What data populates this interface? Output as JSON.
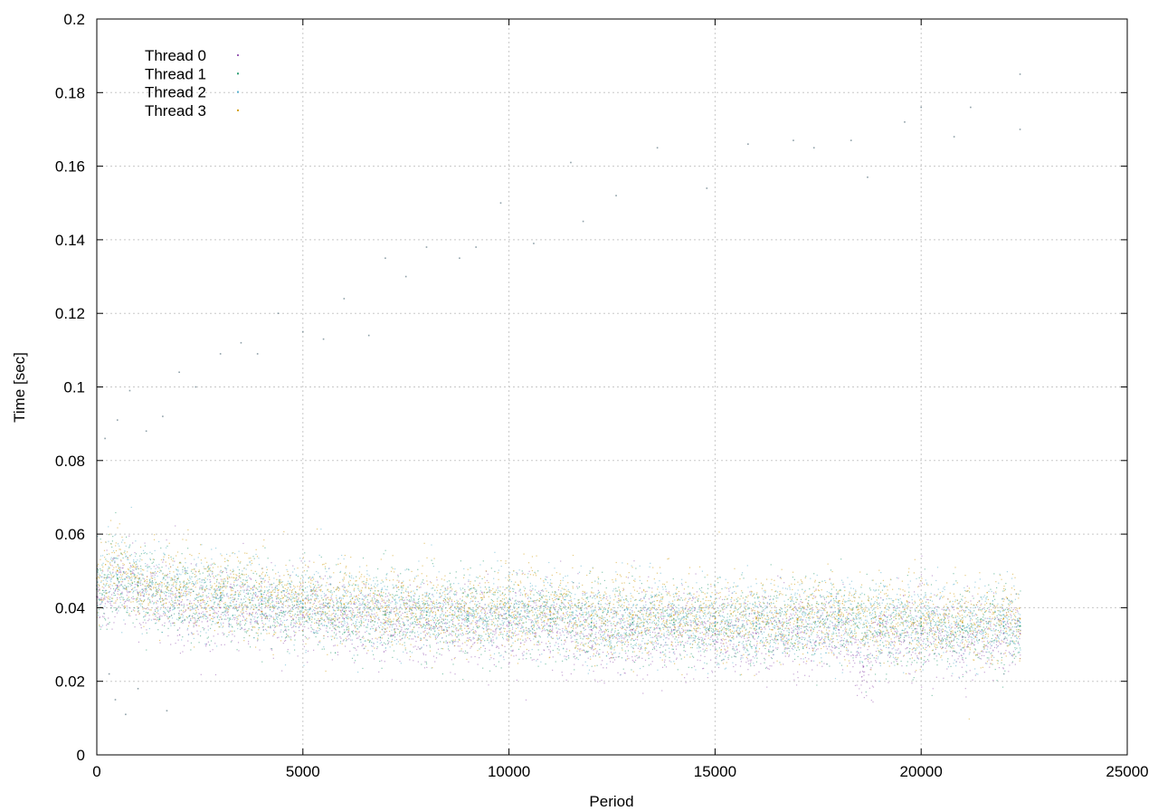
{
  "chart_data": {
    "type": "scatter",
    "title": "",
    "xlabel": "Period",
    "ylabel": "Time [sec]",
    "xlim": [
      0,
      25000
    ],
    "ylim": [
      0,
      0.2
    ],
    "x_ticks": [
      "0",
      "5000",
      "10000",
      "15000",
      "20000",
      "25000"
    ],
    "y_ticks": [
      "0",
      "0.02",
      "0.04",
      "0.06",
      "0.08",
      "0.1",
      "0.12",
      "0.14",
      "0.16",
      "0.18",
      "0.2"
    ],
    "grid": true,
    "legend_position": "top-left",
    "series": [
      {
        "name": "Thread 0",
        "color": "#9a5fb5",
        "points": [
          [
            0,
            0.043
          ],
          [
            500,
            0.046
          ],
          [
            1000,
            0.044
          ],
          [
            2000,
            0.041
          ],
          [
            3000,
            0.04
          ],
          [
            4000,
            0.039
          ],
          [
            5000,
            0.038
          ],
          [
            6000,
            0.037
          ],
          [
            7000,
            0.036
          ],
          [
            8000,
            0.036
          ],
          [
            9000,
            0.035
          ],
          [
            10000,
            0.036
          ],
          [
            11000,
            0.035
          ],
          [
            12000,
            0.034
          ],
          [
            13000,
            0.034
          ],
          [
            14000,
            0.034
          ],
          [
            15000,
            0.033
          ],
          [
            16000,
            0.033
          ],
          [
            17000,
            0.033
          ],
          [
            18000,
            0.034
          ],
          [
            18600,
            0.024
          ],
          [
            19000,
            0.033
          ],
          [
            20000,
            0.033
          ],
          [
            21000,
            0.032
          ],
          [
            22000,
            0.033
          ],
          [
            22400,
            0.033
          ]
        ]
      },
      {
        "name": "Thread 1",
        "color": "#2e9e74",
        "points": [
          [
            0,
            0.045
          ],
          [
            500,
            0.048
          ],
          [
            1000,
            0.046
          ],
          [
            2000,
            0.043
          ],
          [
            3000,
            0.042
          ],
          [
            4000,
            0.041
          ],
          [
            5000,
            0.04
          ],
          [
            6000,
            0.039
          ],
          [
            7000,
            0.038
          ],
          [
            8000,
            0.038
          ],
          [
            9000,
            0.037
          ],
          [
            10000,
            0.038
          ],
          [
            11000,
            0.037
          ],
          [
            12000,
            0.036
          ],
          [
            13000,
            0.036
          ],
          [
            14000,
            0.036
          ],
          [
            15000,
            0.035
          ],
          [
            16000,
            0.035
          ],
          [
            17000,
            0.035
          ],
          [
            18000,
            0.036
          ],
          [
            19000,
            0.035
          ],
          [
            20000,
            0.035
          ],
          [
            21000,
            0.034
          ],
          [
            22000,
            0.035
          ],
          [
            22400,
            0.035
          ]
        ]
      },
      {
        "name": "Thread 2",
        "color": "#5bb3d0",
        "points": [
          [
            0,
            0.046
          ],
          [
            500,
            0.049
          ],
          [
            1000,
            0.047
          ],
          [
            2000,
            0.044
          ],
          [
            3000,
            0.043
          ],
          [
            4000,
            0.042
          ],
          [
            5000,
            0.041
          ],
          [
            6000,
            0.04
          ],
          [
            7000,
            0.039
          ],
          [
            8000,
            0.039
          ],
          [
            9000,
            0.038
          ],
          [
            10000,
            0.039
          ],
          [
            11000,
            0.038
          ],
          [
            12000,
            0.037
          ],
          [
            13000,
            0.037
          ],
          [
            14000,
            0.037
          ],
          [
            15000,
            0.036
          ],
          [
            16000,
            0.036
          ],
          [
            17000,
            0.036
          ],
          [
            18000,
            0.037
          ],
          [
            19000,
            0.036
          ],
          [
            20000,
            0.036
          ],
          [
            21000,
            0.035
          ],
          [
            22000,
            0.036
          ],
          [
            22400,
            0.036
          ]
        ]
      },
      {
        "name": "Thread 3",
        "color": "#d4a017",
        "points": [
          [
            0,
            0.048
          ],
          [
            500,
            0.05
          ],
          [
            1000,
            0.047
          ],
          [
            2000,
            0.045
          ],
          [
            3000,
            0.044
          ],
          [
            4000,
            0.043
          ],
          [
            5000,
            0.042
          ],
          [
            6000,
            0.041
          ],
          [
            7000,
            0.04
          ],
          [
            8000,
            0.04
          ],
          [
            9000,
            0.039
          ],
          [
            10000,
            0.04
          ],
          [
            11000,
            0.039
          ],
          [
            12000,
            0.038
          ],
          [
            13000,
            0.038
          ],
          [
            14000,
            0.038
          ],
          [
            15000,
            0.037
          ],
          [
            16000,
            0.037
          ],
          [
            17000,
            0.037
          ],
          [
            18000,
            0.038
          ],
          [
            19000,
            0.037
          ],
          [
            20000,
            0.037
          ],
          [
            21000,
            0.036
          ],
          [
            22000,
            0.037
          ],
          [
            22400,
            0.037
          ]
        ]
      }
    ],
    "outliers": {
      "color": "#7a8f99",
      "points": [
        [
          200,
          0.086
        ],
        [
          500,
          0.091
        ],
        [
          800,
          0.099
        ],
        [
          1200,
          0.088
        ],
        [
          1600,
          0.092
        ],
        [
          2000,
          0.104
        ],
        [
          2400,
          0.1
        ],
        [
          3000,
          0.109
        ],
        [
          3500,
          0.112
        ],
        [
          3900,
          0.109
        ],
        [
          4400,
          0.12
        ],
        [
          5000,
          0.115
        ],
        [
          5500,
          0.113
        ],
        [
          6000,
          0.124
        ],
        [
          6600,
          0.114
        ],
        [
          7000,
          0.135
        ],
        [
          7500,
          0.13
        ],
        [
          8000,
          0.138
        ],
        [
          8800,
          0.135
        ],
        [
          9200,
          0.138
        ],
        [
          9800,
          0.15
        ],
        [
          10600,
          0.139
        ],
        [
          11500,
          0.161
        ],
        [
          11800,
          0.145
        ],
        [
          12600,
          0.152
        ],
        [
          13600,
          0.165
        ],
        [
          14800,
          0.154
        ],
        [
          15800,
          0.166
        ],
        [
          16900,
          0.167
        ],
        [
          17400,
          0.165
        ],
        [
          18300,
          0.167
        ],
        [
          18700,
          0.157
        ],
        [
          19600,
          0.172
        ],
        [
          20000,
          0.176
        ],
        [
          20800,
          0.168
        ],
        [
          21200,
          0.176
        ],
        [
          22400,
          0.185
        ],
        [
          22400,
          0.17
        ],
        [
          300,
          0.022
        ],
        [
          450,
          0.015
        ],
        [
          700,
          0.011
        ],
        [
          1000,
          0.018
        ],
        [
          1700,
          0.012
        ]
      ]
    }
  }
}
